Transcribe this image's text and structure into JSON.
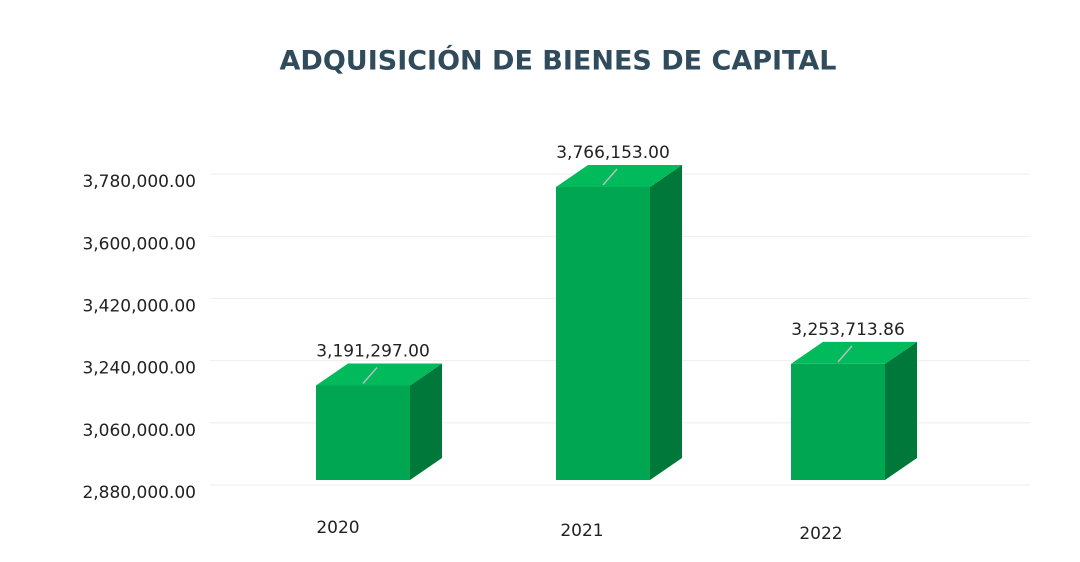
{
  "chart_data": {
    "type": "bar3d",
    "title": "ADQUISICIÓN DE BIENES DE CAPITAL",
    "categories": [
      "2020",
      "2021",
      "2022"
    ],
    "values": [
      3191297.0,
      3766153.0,
      3253713.86
    ],
    "value_labels": [
      "3,191,297.00",
      "3,766,153.00",
      "3,253,713.86"
    ],
    "color": "#00a651",
    "ylim": [
      2880000,
      3960000
    ],
    "yticks": [
      {
        "value": 2880000,
        "label": "2,880,000.00"
      },
      {
        "value": 3060000,
        "label": "3,060,000.00"
      },
      {
        "value": 3240000,
        "label": "3,240,000.00"
      },
      {
        "value": 3420000,
        "label": "3,420,000.00"
      },
      {
        "value": 3600000,
        "label": "3,600,000.00"
      },
      {
        "value": 3780000,
        "label": "3,780,000.00"
      }
    ],
    "grid": true
  }
}
